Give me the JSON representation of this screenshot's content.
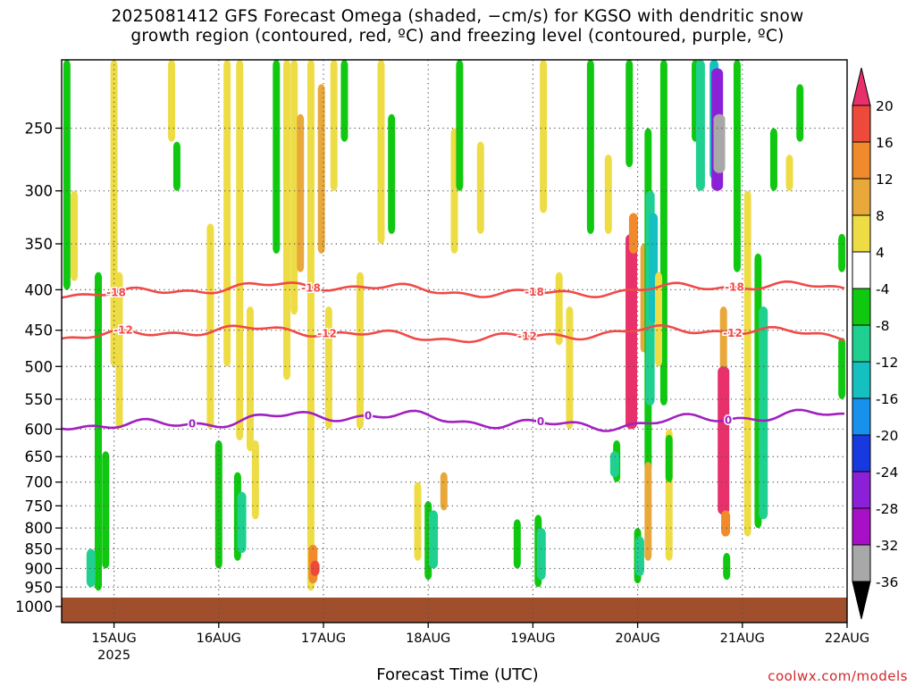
{
  "title_line1": "2025081412 GFS Forecast Omega (shaded, −cm/s) for KGSO with dendritic snow",
  "title_line2": "growth region (contoured, red, ºC) and freezing level (contoured, purple, ºC)",
  "credit": "coolwx.com/models",
  "chart_data": {
    "type": "heatmap",
    "title": "2025081412 GFS Forecast Omega (shaded, −cm/s) for KGSO with dendritic snow growth region (contoured, red, ºC) and freezing level (contoured, purple, ºC)",
    "xlabel": "Forecast Time (UTC)",
    "ylabel": "",
    "x_ticks": [
      "15AUG",
      "16AUG",
      "17AUG",
      "18AUG",
      "19AUG",
      "20AUG",
      "21AUG",
      "22AUG"
    ],
    "x_year_label": "2025",
    "xlim": [
      "2025-08-14 12Z",
      "2025-08-22 00Z"
    ],
    "y_ticks": [
      250,
      300,
      350,
      400,
      450,
      500,
      550,
      600,
      650,
      700,
      750,
      800,
      850,
      900,
      950,
      1000
    ],
    "y_scale": "log-pressure",
    "ylim": [
      1030,
      200
    ],
    "grid": true,
    "colorbar": {
      "labels": [
        20,
        16,
        12,
        8,
        4,
        -4,
        -8,
        -12,
        -16,
        -20,
        -24,
        -28,
        -32,
        -36
      ],
      "colors": [
        "#e8306a",
        "#ee4a3c",
        "#f08a2a",
        "#e8a83a",
        "#eedc44",
        "#ffffff",
        "#10c810",
        "#20d090",
        "#14c0c0",
        "#1890ee",
        "#1838e0",
        "#8c20d8",
        "#a810c8",
        "#a8a8a8",
        "#000000"
      ]
    },
    "surface_color": "#a14e2c",
    "contours": [
      {
        "label": "-18",
        "color": "#f04a48",
        "approx_pressure": 400
      },
      {
        "label": "-12",
        "color": "#f04a48",
        "approx_pressure": 455
      },
      {
        "label": "0",
        "color": "#a020c0",
        "approx_pressure": 585
      }
    ],
    "omega_cells": [
      {
        "t": 14.55,
        "p1": 200,
        "p2": 400,
        "v": -8
      },
      {
        "t": 14.62,
        "p1": 300,
        "p2": 390,
        "v": 4
      },
      {
        "t": 14.85,
        "p1": 380,
        "p2": 960,
        "v": -8
      },
      {
        "t": 14.78,
        "p1": 850,
        "p2": 950,
        "v": -12
      },
      {
        "t": 14.92,
        "p1": 640,
        "p2": 900,
        "v": -8
      },
      {
        "t": 15.0,
        "p1": 200,
        "p2": 500,
        "v": 4
      },
      {
        "t": 15.05,
        "p1": 380,
        "p2": 600,
        "v": 4
      },
      {
        "t": 15.55,
        "p1": 200,
        "p2": 260,
        "v": 4
      },
      {
        "t": 15.6,
        "p1": 260,
        "p2": 300,
        "v": -8
      },
      {
        "t": 15.92,
        "p1": 330,
        "p2": 600,
        "v": 4
      },
      {
        "t": 16.0,
        "p1": 620,
        "p2": 900,
        "v": -8
      },
      {
        "t": 16.08,
        "p1": 200,
        "p2": 500,
        "v": 4
      },
      {
        "t": 16.18,
        "p1": 680,
        "p2": 880,
        "v": -8
      },
      {
        "t": 16.22,
        "p1": 720,
        "p2": 860,
        "v": -12
      },
      {
        "t": 16.2,
        "p1": 200,
        "p2": 620,
        "v": 4
      },
      {
        "t": 16.3,
        "p1": 420,
        "p2": 640,
        "v": 4
      },
      {
        "t": 16.35,
        "p1": 620,
        "p2": 780,
        "v": 4
      },
      {
        "t": 16.55,
        "p1": 200,
        "p2": 360,
        "v": -8
      },
      {
        "t": 16.65,
        "p1": 200,
        "p2": 520,
        "v": 4
      },
      {
        "t": 16.72,
        "p1": 200,
        "p2": 430,
        "v": 4
      },
      {
        "t": 16.78,
        "p1": 240,
        "p2": 380,
        "v": 8
      },
      {
        "t": 16.88,
        "p1": 200,
        "p2": 960,
        "v": 4
      },
      {
        "t": 16.9,
        "p1": 840,
        "p2": 940,
        "v": 12
      },
      {
        "t": 16.92,
        "p1": 880,
        "p2": 920,
        "v": 16
      },
      {
        "t": 16.98,
        "p1": 220,
        "p2": 360,
        "v": 8
      },
      {
        "t": 17.05,
        "p1": 420,
        "p2": 600,
        "v": 4
      },
      {
        "t": 17.1,
        "p1": 200,
        "p2": 300,
        "v": 4
      },
      {
        "t": 17.2,
        "p1": 200,
        "p2": 260,
        "v": -8
      },
      {
        "t": 17.35,
        "p1": 380,
        "p2": 600,
        "v": 4
      },
      {
        "t": 17.55,
        "p1": 200,
        "p2": 350,
        "v": 4
      },
      {
        "t": 17.65,
        "p1": 240,
        "p2": 340,
        "v": -8
      },
      {
        "t": 17.9,
        "p1": 700,
        "p2": 880,
        "v": 4
      },
      {
        "t": 18.0,
        "p1": 740,
        "p2": 930,
        "v": -8
      },
      {
        "t": 18.05,
        "p1": 760,
        "p2": 900,
        "v": -12
      },
      {
        "t": 18.15,
        "p1": 680,
        "p2": 760,
        "v": 8
      },
      {
        "t": 18.25,
        "p1": 250,
        "p2": 360,
        "v": 4
      },
      {
        "t": 18.3,
        "p1": 200,
        "p2": 300,
        "v": -8
      },
      {
        "t": 18.5,
        "p1": 260,
        "p2": 340,
        "v": 4
      },
      {
        "t": 18.85,
        "p1": 780,
        "p2": 900,
        "v": -8
      },
      {
        "t": 19.05,
        "p1": 770,
        "p2": 950,
        "v": -8
      },
      {
        "t": 19.08,
        "p1": 800,
        "p2": 930,
        "v": -12
      },
      {
        "t": 19.1,
        "p1": 200,
        "p2": 320,
        "v": 4
      },
      {
        "t": 19.25,
        "p1": 380,
        "p2": 470,
        "v": 4
      },
      {
        "t": 19.35,
        "p1": 420,
        "p2": 600,
        "v": 4
      },
      {
        "t": 19.55,
        "p1": 200,
        "p2": 340,
        "v": -8
      },
      {
        "t": 19.72,
        "p1": 270,
        "p2": 340,
        "v": 4
      },
      {
        "t": 19.8,
        "p1": 620,
        "p2": 700,
        "v": -8
      },
      {
        "t": 19.78,
        "p1": 640,
        "p2": 690,
        "v": -12
      },
      {
        "t": 19.92,
        "p1": 200,
        "p2": 280,
        "v": -8
      },
      {
        "t": 19.94,
        "p1": 340,
        "p2": 600,
        "v": 20
      },
      {
        "t": 19.96,
        "p1": 320,
        "p2": 360,
        "v": 12
      },
      {
        "t": 20.0,
        "p1": 800,
        "p2": 940,
        "v": -8
      },
      {
        "t": 20.02,
        "p1": 820,
        "p2": 920,
        "v": -12
      },
      {
        "t": 20.06,
        "p1": 350,
        "p2": 480,
        "v": 8
      },
      {
        "t": 20.1,
        "p1": 250,
        "p2": 680,
        "v": -8
      },
      {
        "t": 20.12,
        "p1": 300,
        "p2": 560,
        "v": -12
      },
      {
        "t": 20.15,
        "p1": 320,
        "p2": 440,
        "v": -16
      },
      {
        "t": 20.1,
        "p1": 660,
        "p2": 880,
        "v": 8
      },
      {
        "t": 20.25,
        "p1": 200,
        "p2": 560,
        "v": -8
      },
      {
        "t": 20.2,
        "p1": 380,
        "p2": 500,
        "v": 4
      },
      {
        "t": 20.3,
        "p1": 600,
        "p2": 880,
        "v": 4
      },
      {
        "t": 20.3,
        "p1": 610,
        "p2": 700,
        "v": -8
      },
      {
        "t": 20.55,
        "p1": 200,
        "p2": 260,
        "v": -8
      },
      {
        "t": 20.6,
        "p1": 200,
        "p2": 300,
        "v": -12
      },
      {
        "t": 20.73,
        "p1": 200,
        "p2": 290,
        "v": -16
      },
      {
        "t": 20.76,
        "p1": 210,
        "p2": 300,
        "v": -28
      },
      {
        "t": 20.78,
        "p1": 240,
        "p2": 285,
        "v": -36
      },
      {
        "t": 20.82,
        "p1": 420,
        "p2": 560,
        "v": 8
      },
      {
        "t": 20.82,
        "p1": 500,
        "p2": 770,
        "v": 20
      },
      {
        "t": 20.84,
        "p1": 760,
        "p2": 820,
        "v": 12
      },
      {
        "t": 20.85,
        "p1": 860,
        "p2": 930,
        "v": -8
      },
      {
        "t": 20.95,
        "p1": 200,
        "p2": 380,
        "v": -8
      },
      {
        "t": 21.05,
        "p1": 300,
        "p2": 820,
        "v": 4
      },
      {
        "t": 21.15,
        "p1": 360,
        "p2": 800,
        "v": -8
      },
      {
        "t": 21.2,
        "p1": 420,
        "p2": 780,
        "v": -12
      },
      {
        "t": 21.3,
        "p1": 250,
        "p2": 300,
        "v": -8
      },
      {
        "t": 21.45,
        "p1": 270,
        "p2": 300,
        "v": 4
      },
      {
        "t": 21.55,
        "p1": 220,
        "p2": 260,
        "v": -8
      },
      {
        "t": 21.95,
        "p1": 340,
        "p2": 380,
        "v": -8
      },
      {
        "t": 21.95,
        "p1": 460,
        "p2": 550,
        "v": -8
      }
    ]
  }
}
